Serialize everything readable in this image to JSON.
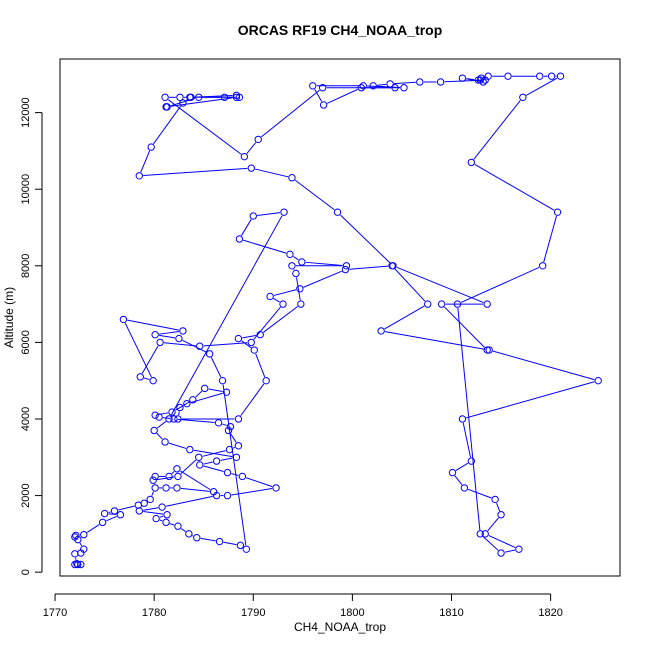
{
  "chart_data": {
    "type": "scatter",
    "title": "ORCAS RF19 CH4_NOAA_trop",
    "xlabel": "CH4_NOAA_trop",
    "ylabel": "Altitude (m)",
    "xlim": [
      1770.5,
      1827
    ],
    "ylim": [
      -100,
      13400
    ],
    "xticks": [
      1770,
      1780,
      1790,
      1800,
      1810,
      1820
    ],
    "yticks": [
      0,
      2000,
      4000,
      6000,
      8000,
      10000,
      12000
    ],
    "grid": false,
    "marker": "open-circle",
    "lines": true,
    "color": "#0000ff",
    "series": [
      {
        "x": [
          1772.0,
          1772.3,
          1772.6,
          1772.2,
          1772.0,
          1772.6,
          1772.9,
          1772.3,
          1772.0,
          1772.1,
          1772.9,
          1774.8,
          1776.6,
          1775.0,
          1776.0,
          1778.4,
          1779.0,
          1779.6,
          1780.1,
          1781.2,
          1782.3,
          1786.0,
          1782.3,
          1781.5,
          1780.1,
          1779.9,
          1782.4,
          1784.5,
          1787.6,
          1788.5,
          1787.5,
          1787.7,
          1786.5,
          1782.0,
          1780.5,
          1780.1,
          1781.8,
          1783.3,
          1787.3,
          1785.1,
          1783.9,
          1782.6,
          1782.4,
          1788.5,
          1791.3,
          1790.1,
          1788.5,
          1790.7,
          1794.8,
          1794.3,
          1793.9,
          1799.4,
          1794.9,
          1793.7,
          1788.6,
          1790.0,
          1793.1,
          1781.5,
          1780.0,
          1781.1,
          1783.6,
          1788.3,
          1786.3,
          1784.6,
          1787.4,
          1788.9,
          1792.3,
          1787.4,
          1786.3,
          1780.8,
          1778.5,
          1781.3,
          1780.2,
          1781.2,
          1782.4,
          1783.5,
          1784.3,
          1786.6,
          1788.7,
          1789.3,
          1786.9,
          1785.6,
          1782.5,
          1780.1,
          1782.9,
          1776.9,
          1779.9,
          1778.6,
          1780.6,
          1784.6,
          1789.8,
          1793.0,
          1791.7,
          1794.7,
          1799.3,
          1804.0,
          1807.6,
          1802.9,
          1813.8,
          1824.8,
          1811.1,
          1812.0,
          1810.1,
          1811.3,
          1814.4,
          1815.0,
          1813.4,
          1816.8,
          1815.0,
          1812.9,
          1810.6,
          1819.2,
          1820.7,
          1812.0,
          1817.2,
          1821.0,
          1820.1,
          1818.9,
          1815.7,
          1813.7,
          1813.0,
          1812.9,
          1813.2,
          1811.1,
          1812.7,
          1813.4,
          1808.9,
          1806.8,
          1803.8,
          1802.1,
          1804.3,
          1800.9,
          1797.1,
          1796.0,
          1801.1,
          1805.2,
          1797.0,
          1790.5,
          1789.1,
          1781.1,
          1782.6,
          1783.6,
          1787.1,
          1788.3,
          1781.2,
          1781.3,
          1784.5,
          1788.6,
          1788.3,
          1783.7,
          1782.9,
          1779.7,
          1778.5,
          1789.8,
          1793.9,
          1798.5,
          1804.1,
          1813.6,
          1809.0,
          1813.6
        ],
        "y": [
          200,
          200,
          200,
          220,
          480,
          500,
          600,
          850,
          920,
          960,
          980,
          1300,
          1500,
          1530,
          1600,
          1750,
          1800,
          1900,
          2200,
          2200,
          2200,
          2100,
          2700,
          2500,
          2500,
          2400,
          2500,
          3000,
          3200,
          3300,
          3700,
          3800,
          3900,
          4000,
          4050,
          4100,
          4180,
          4400,
          4700,
          4800,
          4500,
          4300,
          4000,
          4000,
          5000,
          5800,
          6100,
          6200,
          7000,
          7800,
          8000,
          8000,
          8100,
          8300,
          8700,
          9300,
          9400,
          4000,
          3700,
          3400,
          3200,
          3000,
          2900,
          2800,
          2600,
          2500,
          2200,
          2000,
          2000,
          1700,
          1600,
          1500,
          1400,
          1300,
          1200,
          1000,
          900,
          800,
          700,
          600,
          5000,
          5700,
          6100,
          6200,
          6300,
          6600,
          5000,
          5100,
          6000,
          5900,
          6000,
          7000,
          7200,
          7400,
          7900,
          8000,
          7000,
          6300,
          5800,
          5000,
          4000,
          2900,
          2600,
          2200,
          1900,
          1500,
          1000,
          600,
          500,
          1000,
          7000,
          8000,
          9400,
          10700,
          12400,
          12950,
          12950,
          12950,
          12950,
          12950,
          12900,
          12850,
          12800,
          12900,
          12850,
          12850,
          12800,
          12800,
          12750,
          12700,
          12650,
          12650,
          12200,
          12700,
          12700,
          12650,
          12650,
          11300,
          10850,
          12400,
          12400,
          12400,
          12400,
          12400,
          12150,
          12150,
          12400,
          12400,
          12450,
          12400,
          12250,
          11100,
          10350,
          10550,
          10300,
          9400,
          8000,
          7000,
          7000,
          5800
        ]
      }
    ]
  }
}
